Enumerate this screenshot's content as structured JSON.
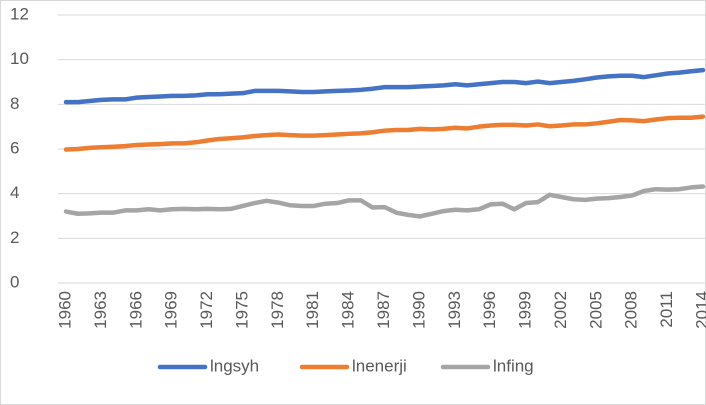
{
  "chart_data": {
    "type": "line",
    "x": [
      1960,
      1961,
      1962,
      1963,
      1964,
      1965,
      1966,
      1967,
      1968,
      1969,
      1970,
      1971,
      1972,
      1973,
      1974,
      1975,
      1976,
      1977,
      1978,
      1979,
      1980,
      1981,
      1982,
      1983,
      1984,
      1985,
      1986,
      1987,
      1988,
      1989,
      1990,
      1991,
      1992,
      1993,
      1994,
      1995,
      1996,
      1997,
      1998,
      1999,
      2000,
      2001,
      2002,
      2003,
      2004,
      2005,
      2006,
      2007,
      2008,
      2009,
      2010,
      2011,
      2012,
      2013,
      2014
    ],
    "xlim": [
      1960,
      2014
    ],
    "xticks": [
      1960,
      1963,
      1966,
      1969,
      1972,
      1975,
      1978,
      1981,
      1984,
      1987,
      1990,
      1993,
      1996,
      1999,
      2002,
      2005,
      2008,
      2011,
      2014
    ],
    "ylim": [
      0,
      12
    ],
    "yticks": [
      0,
      2,
      4,
      6,
      8,
      10,
      12
    ],
    "grid": true,
    "legend": "bottom",
    "series": [
      {
        "name": "lngsyh",
        "color": "#4472c4",
        "values": [
          8.1,
          8.1,
          8.15,
          8.2,
          8.22,
          8.22,
          8.3,
          8.33,
          8.35,
          8.38,
          8.38,
          8.4,
          8.45,
          8.45,
          8.48,
          8.5,
          8.6,
          8.6,
          8.6,
          8.58,
          8.55,
          8.55,
          8.58,
          8.6,
          8.62,
          8.65,
          8.7,
          8.77,
          8.77,
          8.77,
          8.8,
          8.82,
          8.85,
          8.9,
          8.85,
          8.9,
          8.95,
          9.0,
          9.0,
          8.95,
          9.02,
          8.95,
          9.0,
          9.05,
          9.12,
          9.2,
          9.25,
          9.28,
          9.28,
          9.22,
          9.3,
          9.38,
          9.42,
          9.48,
          9.53
        ]
      },
      {
        "name": "lnenerji",
        "color": "#ed7d31",
        "values": [
          5.98,
          6.0,
          6.05,
          6.08,
          6.1,
          6.13,
          6.18,
          6.2,
          6.22,
          6.25,
          6.25,
          6.3,
          6.38,
          6.45,
          6.48,
          6.52,
          6.58,
          6.62,
          6.65,
          6.62,
          6.6,
          6.6,
          6.62,
          6.65,
          6.68,
          6.7,
          6.75,
          6.82,
          6.85,
          6.85,
          6.9,
          6.88,
          6.9,
          6.95,
          6.92,
          7.0,
          7.05,
          7.08,
          7.08,
          7.05,
          7.1,
          7.02,
          7.05,
          7.1,
          7.1,
          7.15,
          7.22,
          7.3,
          7.28,
          7.25,
          7.32,
          7.38,
          7.4,
          7.4,
          7.45
        ]
      },
      {
        "name": "lnfing",
        "color": "#a5a5a5",
        "values": [
          3.2,
          3.1,
          3.12,
          3.15,
          3.15,
          3.25,
          3.25,
          3.3,
          3.25,
          3.3,
          3.32,
          3.3,
          3.32,
          3.3,
          3.32,
          3.45,
          3.58,
          3.68,
          3.6,
          3.48,
          3.45,
          3.45,
          3.55,
          3.58,
          3.7,
          3.7,
          3.38,
          3.4,
          3.15,
          3.05,
          2.98,
          3.1,
          3.22,
          3.28,
          3.25,
          3.3,
          3.52,
          3.55,
          3.3,
          3.58,
          3.62,
          3.95,
          3.85,
          3.75,
          3.72,
          3.78,
          3.8,
          3.85,
          3.92,
          4.12,
          4.2,
          4.18,
          4.2,
          4.28,
          4.32
        ]
      }
    ]
  }
}
